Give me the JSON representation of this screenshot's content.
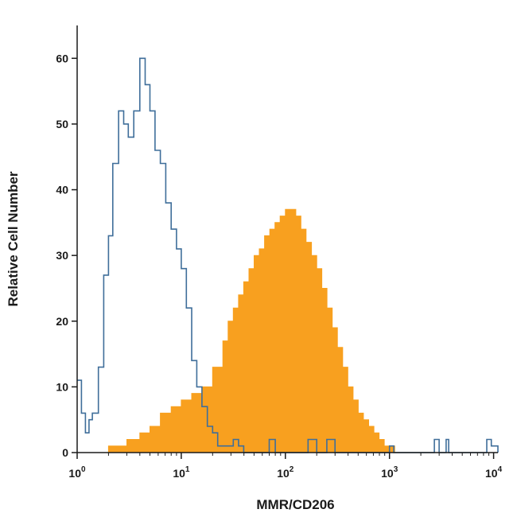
{
  "chart_data": {
    "type": "area",
    "xlabel": "MMR/CD206",
    "ylabel": "Relative Cell Number",
    "xscale": "log",
    "xlim": [
      1,
      11000
    ],
    "ylim": [
      0,
      65
    ],
    "x_ticks": [
      {
        "value": 1,
        "base": "10",
        "exp": "0"
      },
      {
        "value": 10,
        "base": "10",
        "exp": "1"
      },
      {
        "value": 100,
        "base": "10",
        "exp": "2"
      },
      {
        "value": 1000,
        "base": "10",
        "exp": "3"
      },
      {
        "value": 10000,
        "base": "10",
        "exp": "4"
      }
    ],
    "y_ticks": [
      "0",
      "10",
      "20",
      "30",
      "40",
      "50",
      "60"
    ],
    "grid": false,
    "series": [
      {
        "style": "outline",
        "color": "#3f6e9a",
        "x": [
          1.0,
          1.1,
          1.2,
          1.3,
          1.4,
          1.6,
          1.8,
          2.0,
          2.2,
          2.5,
          2.8,
          3.1,
          3.5,
          4.0,
          4.5,
          5.0,
          5.6,
          6.3,
          7.1,
          8.0,
          9.0,
          10.0,
          11.2,
          12.6,
          14.1,
          15.8,
          17.8,
          20.0,
          22.4,
          25.1,
          28.2,
          31.6,
          35.5,
          39.8,
          50,
          63,
          70,
          80,
          100,
          150,
          165,
          200,
          250,
          300,
          500,
          1000,
          1100,
          1500,
          2000,
          2500,
          2700,
          3000,
          3500,
          3700,
          5000,
          8000,
          8600,
          9500,
          11000
        ],
        "y": [
          11,
          6,
          3,
          5,
          6,
          13,
          27,
          33,
          44,
          52,
          50,
          48,
          52,
          60,
          56,
          52,
          46,
          44,
          38,
          34,
          31,
          28,
          22,
          14,
          10,
          7,
          4,
          3,
          1,
          1,
          1,
          2,
          1,
          0,
          0,
          0,
          2,
          0,
          0,
          0,
          2,
          0,
          2,
          0,
          0,
          1,
          0,
          0,
          0,
          0,
          2,
          0,
          2,
          0,
          0,
          0,
          2,
          1,
          0
        ]
      },
      {
        "style": "filled",
        "color": "#f8a01f",
        "x": [
          1.0,
          1.5,
          2.0,
          2.5,
          3.0,
          4.0,
          5.0,
          6.3,
          8.0,
          10.0,
          12.6,
          15.8,
          20.0,
          25.1,
          28.2,
          31.6,
          35.5,
          39.8,
          44.7,
          50.1,
          56.2,
          63.1,
          70.8,
          79.4,
          89.1,
          100,
          112,
          126,
          141,
          158,
          178,
          200,
          224,
          251,
          282,
          316,
          355,
          398,
          447,
          501,
          562,
          631,
          708,
          794,
          891,
          1000,
          1122,
          1259
        ],
        "y": [
          0,
          0,
          1,
          1,
          2,
          3,
          4,
          6,
          7,
          8,
          9,
          10,
          13,
          17,
          20,
          22,
          24,
          26,
          28,
          30,
          31,
          33,
          34,
          35,
          36,
          37,
          37,
          36,
          34,
          32,
          30,
          28,
          25,
          22,
          19,
          16,
          13,
          10,
          8,
          6,
          5,
          4,
          3,
          2,
          1,
          1,
          0,
          0
        ]
      }
    ]
  }
}
